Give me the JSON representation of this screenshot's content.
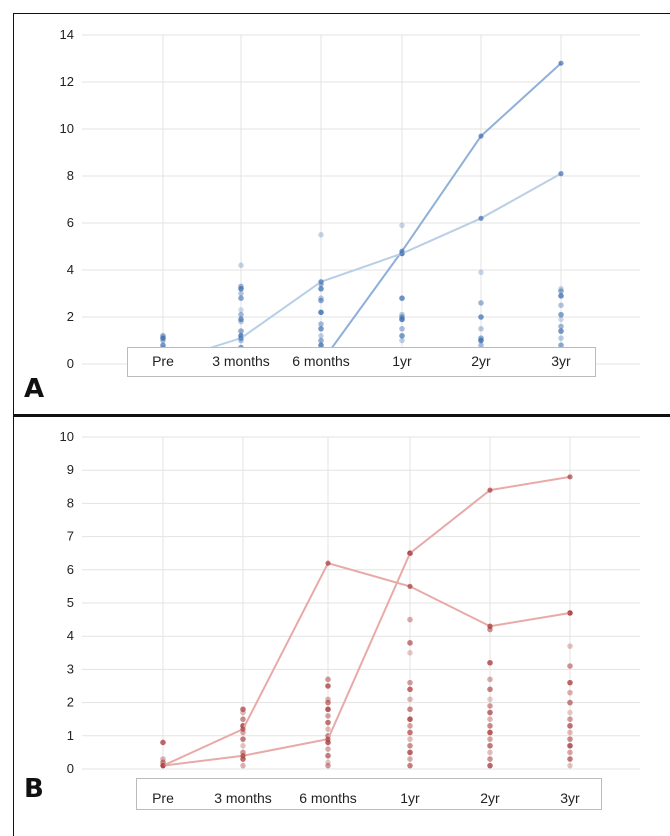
{
  "figure": {
    "panels": [
      {
        "id": "A",
        "label": "A",
        "color_line": "#8fb0d8",
        "color_line_light": "#b9cfe6",
        "color_points": "#3f6fb0",
        "chart_data": {
          "type": "line",
          "categories": [
            "Pre",
            "3 months",
            "6 months",
            "1yr",
            "2yr",
            "3yr"
          ],
          "ylim": [
            0,
            14
          ],
          "yticks": [
            0,
            2,
            4,
            6,
            8,
            10,
            12,
            14
          ],
          "grid": true,
          "series": [
            {
              "values": [
                0.05,
                0.05,
                0.05,
                4.8,
                9.7,
                12.8
              ]
            },
            {
              "values": [
                0.05,
                1.1,
                3.5,
                4.7,
                6.2,
                8.1
              ]
            }
          ],
          "scatter": [
            [
              0,
              0.1,
              0.3,
              0.4,
              0.6,
              0.7,
              0.8,
              1.0,
              1.1,
              1.2
            ],
            [
              0,
              0.1,
              0.3,
              0.5,
              0.7,
              1.0,
              1.2,
              1.4,
              1.8,
              1.9,
              2.1,
              2.3,
              2.8,
              3.0,
              3.2,
              3.3,
              4.2
            ],
            [
              0,
              0.1,
              0.3,
              0.5,
              0.8,
              1.0,
              1.2,
              1.5,
              1.7,
              2.2,
              2.7,
              2.8,
              3.2,
              3.4,
              5.5
            ],
            [
              0,
              0.1,
              0.4,
              0.6,
              1.0,
              1.2,
              1.5,
              1.9,
              2.0,
              2.1,
              2.8,
              4.7,
              5.9
            ],
            [
              0,
              0.1,
              0.3,
              0.4,
              0.8,
              1.0,
              1.1,
              1.5,
              2.0,
              2.6,
              3.9
            ],
            [
              0,
              0.1,
              0.3,
              0.5,
              0.8,
              1.1,
              1.4,
              1.6,
              1.9,
              2.1,
              2.5,
              2.9,
              3.1,
              3.2
            ]
          ]
        }
      },
      {
        "id": "B",
        "label": "B",
        "color_line": "#e8aaa8",
        "color_points": "#a83a3a",
        "chart_data": {
          "type": "line",
          "categories": [
            "Pre",
            "3 months",
            "6 months",
            "1yr",
            "2yr",
            "3yr"
          ],
          "ylim": [
            0,
            10
          ],
          "yticks": [
            0,
            1,
            2,
            3,
            4,
            5,
            6,
            7,
            8,
            9,
            10
          ],
          "grid": true,
          "series": [
            {
              "values": [
                0.1,
                0.4,
                0.9,
                6.5,
                8.4,
                8.8
              ]
            },
            {
              "values": [
                0.1,
                1.2,
                6.2,
                5.5,
                4.3,
                4.7
              ]
            }
          ],
          "scatter": [
            [
              0.1,
              0.2,
              0.3,
              0.8
            ],
            [
              0.1,
              0.3,
              0.5,
              0.7,
              0.9,
              1.1,
              1.3,
              1.5,
              1.7,
              1.8
            ],
            [
              0.1,
              0.2,
              0.4,
              0.6,
              0.8,
              1.0,
              1.2,
              1.4,
              1.6,
              1.8,
              2.0,
              2.1,
              2.5,
              2.7
            ],
            [
              0.1,
              0.3,
              0.5,
              0.7,
              0.9,
              1.1,
              1.3,
              1.5,
              1.8,
              2.1,
              2.4,
              2.6,
              3.5,
              3.8,
              4.5,
              6.5
            ],
            [
              0.1,
              0.3,
              0.5,
              0.7,
              0.9,
              1.1,
              1.3,
              1.5,
              1.7,
              1.9,
              2.1,
              2.4,
              2.7,
              3.2,
              4.2,
              4.3
            ],
            [
              0.1,
              0.3,
              0.5,
              0.7,
              0.9,
              1.1,
              1.3,
              1.5,
              1.7,
              2.0,
              2.3,
              2.6,
              3.1,
              3.7,
              4.7
            ]
          ]
        }
      }
    ]
  }
}
